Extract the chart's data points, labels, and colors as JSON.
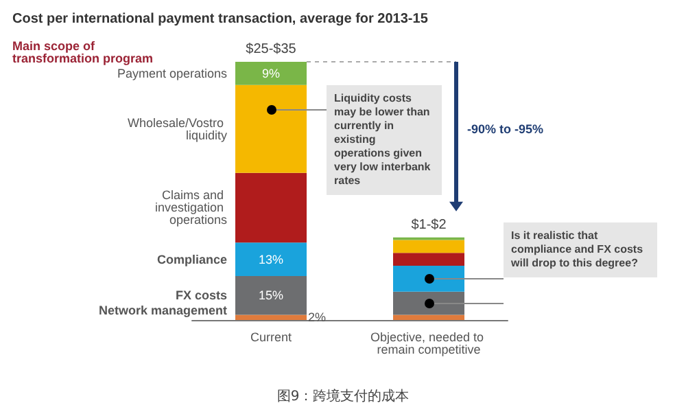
{
  "chart_data": {
    "type": "bar",
    "title": "Cost per international payment transaction, average for 2013-15",
    "subtitle": "Main scope of transformation program",
    "categories": [
      "Current",
      "Objective, needed to remain competitive"
    ],
    "stacked": true,
    "legend": false,
    "tick_labels": "x",
    "totals": [
      "$25-$35",
      "$1-$2"
    ],
    "series": [
      {
        "name": "Network management",
        "color": "#e07b3c",
        "values": [
          2,
          2
        ],
        "value_labels": [
          "2%",
          null
        ]
      },
      {
        "name": "FX costs",
        "color": "#6d6e70",
        "values": [
          15,
          9
        ],
        "value_labels": [
          "15%",
          null
        ]
      },
      {
        "name": "Compliance",
        "color": "#1aa3dc",
        "values": [
          13,
          10
        ],
        "value_labels": [
          "13%",
          null
        ]
      },
      {
        "name": "Claims and investigation operations",
        "color": "#b01c1c",
        "values": [
          27,
          5
        ],
        "value_labels": [
          null,
          null
        ]
      },
      {
        "name": "Wholesale/Vostro liquidity",
        "color": "#f5b800",
        "values": [
          34,
          5
        ],
        "value_labels": [
          null,
          null
        ]
      },
      {
        "name": "Payment operations",
        "color": "#7ab648",
        "values": [
          9,
          1
        ],
        "value_labels": [
          "9%",
          null
        ]
      }
    ],
    "annotations": [
      "-90% to -95%",
      "Liquidity costs may be lower than currently in existing operations given very low interbank rates",
      "Is it realistic that compliance and FX costs will drop to this degree?",
      "图9：跨境支付的成本"
    ]
  }
}
